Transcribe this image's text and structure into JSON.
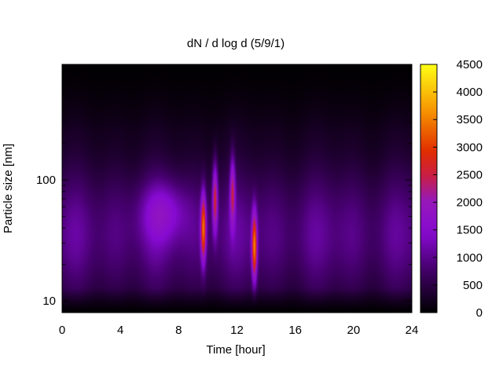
{
  "chart_data": {
    "type": "heatmap",
    "title": "dN / d log d (5/9/1)",
    "xlabel": "Time [hour]",
    "ylabel": "Particle size [nm]",
    "x_ticks": [
      0,
      4,
      8,
      12,
      16,
      20,
      24
    ],
    "xlim": [
      0,
      24
    ],
    "y_scale": "log",
    "y_ticks": [
      10,
      100
    ],
    "ylim": [
      8,
      900
    ],
    "colorbar": {
      "ticks": [
        0,
        500,
        1000,
        1500,
        2000,
        2500,
        3000,
        3500,
        4000,
        4500
      ],
      "range": [
        0,
        4500
      ],
      "palette": "black-purple-red-orange-yellow"
    },
    "grid": false,
    "plumes": [
      {
        "time": 9.7,
        "size_center": 40,
        "peak": 3600
      },
      {
        "time": 10.5,
        "size_center": 70,
        "peak": 3000
      },
      {
        "time": 11.7,
        "size_center": 80,
        "peak": 2700
      },
      {
        "time": 13.2,
        "size_center": 28,
        "peak": 3700
      }
    ],
    "background_peak": {
      "time": 7,
      "size_center": 55,
      "level": 1700
    }
  }
}
